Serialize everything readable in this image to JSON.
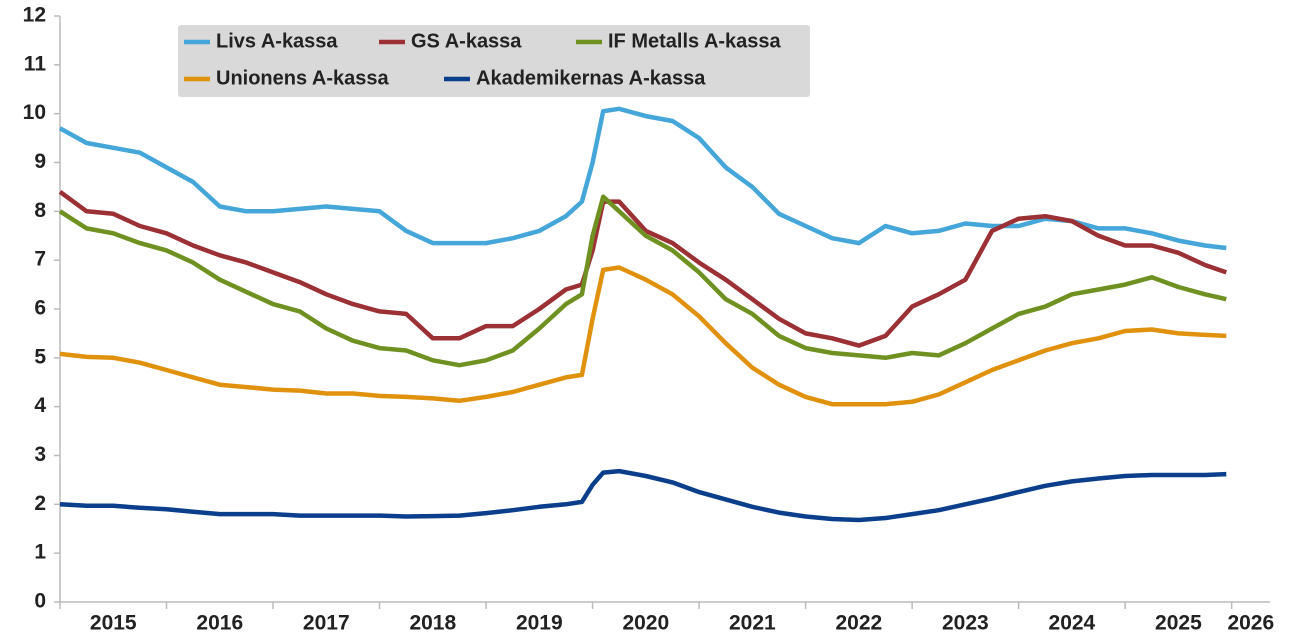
{
  "chart_data": {
    "type": "line",
    "x": [
      2015.0,
      2015.25,
      2015.5,
      2015.75,
      2016.0,
      2016.25,
      2016.5,
      2016.75,
      2017.0,
      2017.25,
      2017.5,
      2017.75,
      2018.0,
      2018.25,
      2018.5,
      2018.75,
      2019.0,
      2019.25,
      2019.5,
      2019.75,
      2019.9,
      2020.0,
      2020.1,
      2020.25,
      2020.5,
      2020.75,
      2021.0,
      2021.25,
      2021.5,
      2021.75,
      2022.0,
      2022.25,
      2022.5,
      2022.75,
      2023.0,
      2023.25,
      2023.5,
      2023.75,
      2024.0,
      2024.25,
      2024.5,
      2024.75,
      2025.0,
      2025.25,
      2025.5,
      2025.75,
      2025.95
    ],
    "series": [
      {
        "name": "Livs A-kassa",
        "color": "#45a6d9",
        "values": [
          9.7,
          9.4,
          9.3,
          9.2,
          8.9,
          8.6,
          8.1,
          8.0,
          8.0,
          8.05,
          8.1,
          8.05,
          8.0,
          7.6,
          7.35,
          7.35,
          7.35,
          7.45,
          7.6,
          7.9,
          8.2,
          9.0,
          10.05,
          10.1,
          9.95,
          9.85,
          9.5,
          8.9,
          8.5,
          7.95,
          7.7,
          7.45,
          7.35,
          7.7,
          7.55,
          7.6,
          7.75,
          7.7,
          7.7,
          7.85,
          7.8,
          7.65,
          7.65,
          7.55,
          7.4,
          7.3,
          7.25
        ]
      },
      {
        "name": "GS A-kassa",
        "color": "#9b3035",
        "values": [
          8.4,
          8.0,
          7.95,
          7.7,
          7.55,
          7.3,
          7.1,
          6.95,
          6.75,
          6.55,
          6.3,
          6.1,
          5.95,
          5.9,
          5.4,
          5.4,
          5.65,
          5.65,
          6.0,
          6.4,
          6.5,
          7.2,
          8.2,
          8.2,
          7.6,
          7.35,
          6.95,
          6.6,
          6.2,
          5.8,
          5.5,
          5.4,
          5.25,
          5.45,
          6.05,
          6.3,
          6.6,
          7.6,
          7.85,
          7.9,
          7.8,
          7.5,
          7.3,
          7.3,
          7.15,
          6.9,
          6.75
        ]
      },
      {
        "name": "IF Metalls A-kassa",
        "color": "#6f9121",
        "values": [
          8.0,
          7.65,
          7.55,
          7.35,
          7.2,
          6.95,
          6.6,
          6.35,
          6.1,
          5.95,
          5.6,
          5.35,
          5.2,
          5.15,
          4.95,
          4.85,
          4.95,
          5.15,
          5.6,
          6.1,
          6.3,
          7.5,
          8.3,
          8.0,
          7.5,
          7.2,
          6.75,
          6.2,
          5.9,
          5.45,
          5.2,
          5.1,
          5.05,
          5.0,
          5.1,
          5.05,
          5.3,
          5.6,
          5.9,
          6.05,
          6.3,
          6.4,
          6.5,
          6.65,
          6.45,
          6.3,
          6.2
        ]
      },
      {
        "name": "Unionens A-kassa",
        "color": "#e0920f",
        "values": [
          5.08,
          5.02,
          5.0,
          4.9,
          4.75,
          4.6,
          4.45,
          4.4,
          4.35,
          4.33,
          4.27,
          4.27,
          4.22,
          4.2,
          4.17,
          4.12,
          4.2,
          4.3,
          4.45,
          4.6,
          4.65,
          5.8,
          6.8,
          6.85,
          6.6,
          6.3,
          5.85,
          5.3,
          4.8,
          4.45,
          4.2,
          4.05,
          4.05,
          4.05,
          4.1,
          4.25,
          4.5,
          4.75,
          4.95,
          5.15,
          5.3,
          5.4,
          5.55,
          5.58,
          5.5,
          5.47,
          5.45
        ]
      },
      {
        "name": "Akademikernas A-kassa",
        "color": "#0b3f8c",
        "values": [
          2.0,
          1.97,
          1.97,
          1.93,
          1.9,
          1.85,
          1.8,
          1.8,
          1.8,
          1.77,
          1.77,
          1.77,
          1.77,
          1.75,
          1.76,
          1.77,
          1.82,
          1.88,
          1.95,
          2.0,
          2.05,
          2.4,
          2.65,
          2.68,
          2.58,
          2.45,
          2.25,
          2.1,
          1.95,
          1.83,
          1.75,
          1.7,
          1.68,
          1.72,
          1.8,
          1.88,
          2.0,
          2.12,
          2.25,
          2.38,
          2.47,
          2.53,
          2.58,
          2.6,
          2.6,
          2.6,
          2.62
        ]
      }
    ],
    "xlim": [
      2015,
      2026.36
    ],
    "xticks": [
      2015,
      2016,
      2017,
      2018,
      2019,
      2020,
      2021,
      2022,
      2023,
      2024,
      2025,
      2026
    ],
    "ylim": [
      0,
      12
    ],
    "yticks": [
      0,
      1,
      2,
      3,
      4,
      5,
      6,
      7,
      8,
      9,
      10,
      11,
      12
    ],
    "grid": false,
    "legend": "upper left"
  }
}
